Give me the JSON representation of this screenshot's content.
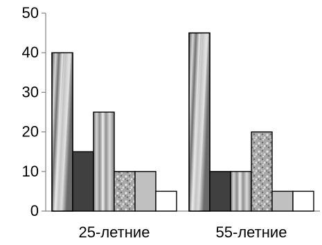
{
  "chart_data": {
    "type": "bar",
    "title": "",
    "xlabel": "",
    "ylabel": "",
    "categories": [
      "25-летние",
      "55-летние"
    ],
    "ylim": [
      0,
      50
    ],
    "yticks": [
      0,
      10,
      20,
      30,
      40,
      50
    ],
    "grid": false,
    "legend": "none",
    "series": [
      {
        "values": [
          40,
          45
        ],
        "fill": "diagonal-stripe-gradient",
        "color": "#a0a0a0"
      },
      {
        "values": [
          15,
          10
        ],
        "fill": "solid-dark",
        "color": "#404040"
      },
      {
        "values": [
          25,
          10
        ],
        "fill": "vertical-stripe-gradient",
        "color": "#b0b0b0"
      },
      {
        "values": [
          10,
          20
        ],
        "fill": "granite-texture",
        "color": "#9a9a9a"
      },
      {
        "values": [
          10,
          5
        ],
        "fill": "solid-light",
        "color": "#c0c0c0"
      },
      {
        "values": [
          5,
          5
        ],
        "fill": "white",
        "color": "#ffffff"
      }
    ]
  }
}
